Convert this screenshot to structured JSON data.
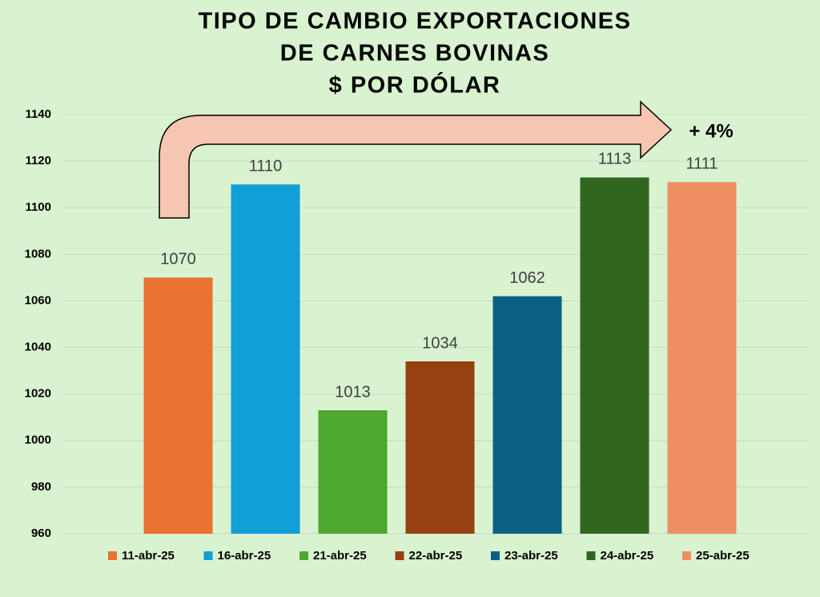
{
  "chart_data": {
    "type": "bar",
    "title": [
      "TIPO DE CAMBIO EXPORTACIONES",
      "DE CARNES BOVINAS",
      "$ POR DÓLAR"
    ],
    "annotation": "+ 4%",
    "series": [
      {
        "name": "11-abr-25",
        "color": "#e97132",
        "values": [
          1070
        ]
      },
      {
        "name": "16-abr-25",
        "color": "#109fd6",
        "values": [
          1110
        ]
      },
      {
        "name": "21-abr-25",
        "color": "#4ea72e",
        "values": [
          1013
        ]
      },
      {
        "name": "22-abr-25",
        "color": "#974011",
        "values": [
          1034
        ]
      },
      {
        "name": "23-abr-25",
        "color": "#0c6083",
        "values": [
          1062
        ]
      },
      {
        "name": "24-abr-25",
        "color": "#30661e",
        "values": [
          1113
        ]
      },
      {
        "name": "25-abr-25",
        "color": "#ee8f61",
        "values": [
          1111
        ]
      }
    ],
    "ylim": [
      960,
      1140
    ],
    "yticks": [
      960,
      980,
      1000,
      1020,
      1040,
      1060,
      1080,
      1100,
      1120,
      1140
    ],
    "grid": true,
    "legend": "bottom"
  }
}
